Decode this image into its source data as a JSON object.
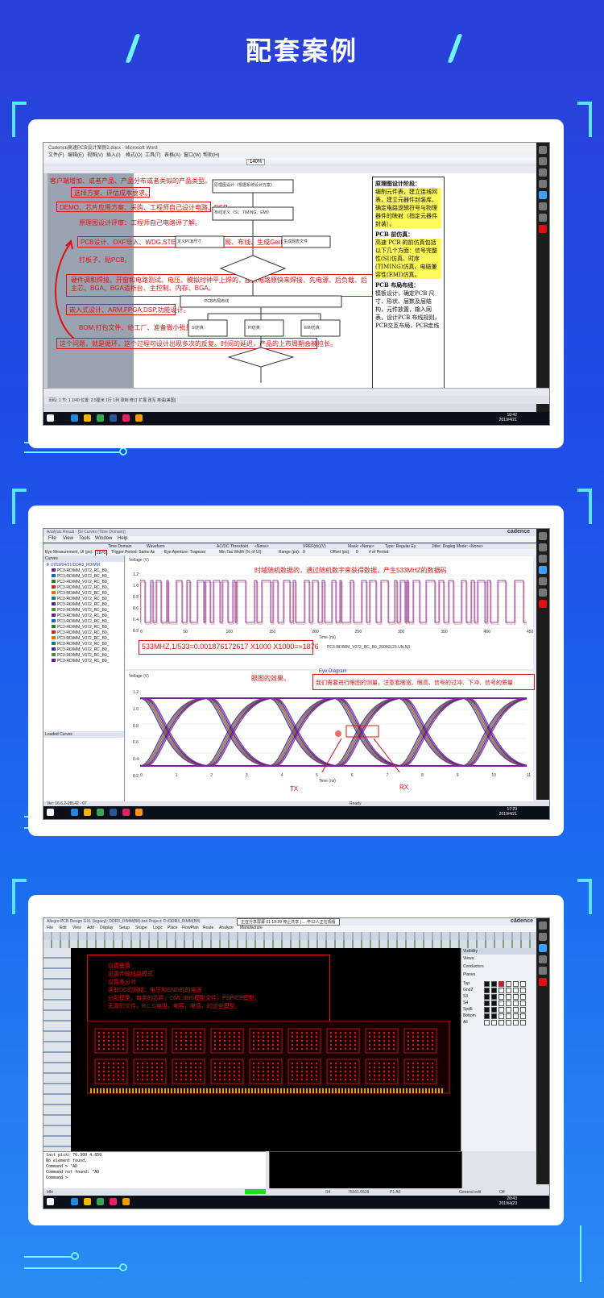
{
  "header": {
    "title": "配套案例"
  },
  "cases": [
    {
      "app_title": "Cadence高速PCB设计案例2.docx - Microsoft Word",
      "menu": [
        "文件(F)",
        "编辑(E)",
        "视图(V)",
        "插入(I)",
        "格式(O)",
        "工具(T)",
        "表格(A)",
        "窗口(W)",
        "帮助(H)"
      ],
      "zoom": "140%",
      "left_notes": [
        "客户端增加、或者产品、产品分布或者类似的产品类型。",
        "选择方案、评估成本要求。",
        "DEMO、芯片应用方案、采购、工程师自己设计电路、DSP。",
        "原理图设计评审：工程师自己电路评了解。",
        "PCB设计、DXF导入、WDG,STEP、摆子设计、布局、布线、生成Gerber",
        "打板子、贴PCB。",
        "硬件调和焊接、开窗和电路测试、电压、模拟时钟平上焊的，按照电路原快来焊接、先电源、后负载、后主芯、BGA、BGA适析台、主控制、内存、BGA。",
        "嵌入式设计、ARM,FPGA,DSP,功能设计。",
        "BOM,打包文件、给工厂、准备做小批量。",
        "这个问题，就是循环，这个过程可设计出现多次的反复。时间的延迟，产品的上市周期会被拉长。"
      ],
      "flow_boxes": [
        "原理图设计（根据系统设计方案）",
        "布线定义（SI、TIMING、EMI）",
        "定义PCB尺寸",
        "生成网表文件",
        "PCB布局布线",
        "SI仿真",
        "PI仿真",
        "EMI仿真"
      ],
      "right_panel": {
        "h1": "原理图设计阶段：",
        "p1": "编制元件表，建立连线网表，建立元器件封装库，确定电路逻辑符号与物理器件的映射（指定元器件封装）。",
        "h2": "PCB 前仿真：",
        "p2": "高速 PCB 的前仿真包括以下几个方面：信号完整性(SI)仿真、时序(TIMING)仿真、电磁兼容性(EMI)仿真。",
        "h3": "PCB 布局布线：",
        "p3": "模板设计，确定PCB 尺寸、形状、层数及层结构，元件放置，输入网表，设计PCB 布线规则，PCB交互布局，PCB走线"
      },
      "status": "页码: 1  节: 1  1/40  位置: 2.5厘米  1行  1列  录制 修订 扩展 改写  英语(美国)",
      "clock": "10:42",
      "date": "2019/4/21"
    },
    {
      "app_title": "Analysis Result - [SI Curves (Time Domain)]",
      "brand": "cadence",
      "menu": [
        "File",
        "View",
        "Tools",
        "Window",
        "Help"
      ],
      "toolbar": [
        "Time Domain",
        "Waveform",
        "AC/DC Threshold",
        "<None>",
        "VREF(dc)(V)",
        "Mask: <None>",
        "Type: Regular Ey",
        "Jitter: Dogleg Mode: <None>"
      ],
      "toolbar2": [
        "Eye Measurement, UI (ps):",
        "1876",
        "Trigger Period: Same As",
        "Eye Aperture: Trapezoi",
        "Min Tac Width (% of UI):",
        "Range (ps):",
        "0",
        "Offset (ps):",
        "0",
        "# of Period:"
      ],
      "tree_root": "E:/2019/04/21/DDR3_RDIMM",
      "tree_item": "PC3-RDIMM_V072_RC_B0_",
      "chart1_annotation": "时域随机数据的，通过随机数字来获得数据，产生533MHZ的数据码",
      "chart1_ylabel": "Voltage (V)",
      "chart1_xlabel": "Time (ns)",
      "chart1_yticks": [
        "1.2",
        "1.0",
        "0.8",
        "0.6",
        "0.4",
        "0.2"
      ],
      "chart1_xticks": [
        "0",
        "50",
        "100",
        "150",
        "200",
        "250",
        "300",
        "350",
        "400",
        "450"
      ],
      "formula": "533MHZ,1/533=0.001876172617 X1000 X1000=≈1876",
      "legend1": "PC3-RDIMM_V072_RC_B0_20080123.UN.N3",
      "eye_label": "眼图的效果。",
      "eye_note": "我们需要进行眼图的测量，注意看眼宽、眼高、信号的过冲、下冲、信号的质量",
      "eye_title": "Eye Diagram",
      "chart2_ylabel": "Voltage (V)",
      "chart2_xlabel": "Time (ns)",
      "chart2_yticks": [
        "1.2",
        "1.0",
        "0.8",
        "0.6",
        "0.4",
        "0.2"
      ],
      "chart2_xticks": [
        "0",
        "1",
        "2",
        "3",
        "4",
        "5",
        "6",
        "7",
        "8",
        "9",
        "10",
        "11"
      ],
      "tx": "TX",
      "rx": "RX",
      "loaded_curves": "Loaded Curves",
      "curves_tab": "Curves",
      "status_ver": "Ver: 16.6.2-28142 · 07",
      "status_ready": "Ready",
      "clock": "17:23",
      "date": "2019/4/21"
    },
    {
      "app_title": "Allegro PCB Design GXL (legacy): DDR3_DIMM(B8).brd  Project: D:/DDR3_DIMM(B8)",
      "notify": "正在分享屏幕    01:19:29    停止共享 | ...·毕12人正在观看",
      "brand": "cādence",
      "menu": [
        "File",
        "Edit",
        "View",
        "Add",
        "Display",
        "Setup",
        "Shape",
        "Logic",
        "Place",
        "FlowPlan",
        "Route",
        "Analyze",
        "Manufacture"
      ],
      "red_notes": [
        "设置叠层",
        "设置传输线路模式",
        "设置差分对",
        "读取DC的网络、电压和GND的的电源",
        "分配模型，每类的芯片，DML,IBIS模型文件，PSPICE模型，",
        "无源的文件，R,L,C电阻，电容，电感，的这些模型。"
      ],
      "visibility": {
        "title": "Visibility",
        "views": "Views:",
        "conductors": "Conductors",
        "planes": "Planes",
        "layers": [
          "Top",
          "Gnd2",
          "S3",
          "S4",
          "Spd5",
          "Bottom",
          "All"
        ]
      },
      "console": [
        "last pick:  76.300 4.850",
        "No element found.",
        "Command > \"AD",
        "Command not found: \"AD",
        "Command >"
      ],
      "status": [
        "Idle",
        "S4",
        "75561.6528",
        "P1 A0",
        "General edit",
        "Off"
      ],
      "clock": "20:43",
      "date": "2019/4/23"
    }
  ],
  "colors": {
    "accent": "#6ff3ff",
    "bg_top": "#2a3fd8",
    "bg_bottom": "#2a8cf5",
    "annot": "#e01010"
  }
}
